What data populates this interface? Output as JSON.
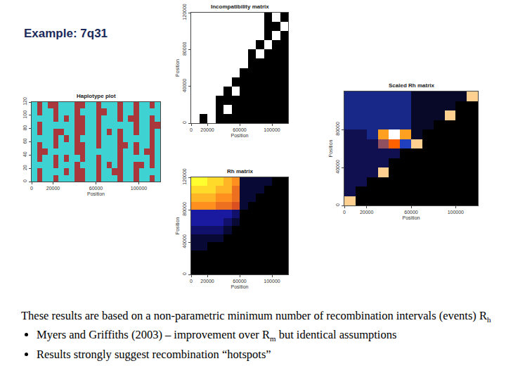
{
  "slide": {
    "title": "Example: 7q31",
    "paragraph": [
      {
        "text": "These results are based on a non-parametric minimum number of recombination intervals (events) R"
      },
      {
        "sub": "h"
      }
    ],
    "bullets": [
      [
        {
          "text": "Myers and Griffiths (2003) – improvement over R"
        },
        {
          "sub": "m"
        },
        {
          "text": " but identical assumptions"
        }
      ],
      [
        {
          "text": "Results strongly suggest recombination “hotspots”"
        }
      ]
    ]
  },
  "chart_data": [
    {
      "type": "heatmap",
      "title": "Haplotype plot",
      "x_label": "Position",
      "xlim": [
        0,
        120000
      ],
      "ylim": [
        0,
        120
      ],
      "xticks": [
        0,
        20000,
        60000,
        100000
      ],
      "yticks": [
        0,
        20,
        40,
        60,
        80,
        100,
        120
      ],
      "x": [
        2500,
        7500,
        12500,
        17500,
        22500,
        27500,
        32500,
        37500,
        42500,
        47500,
        52500,
        57500,
        62500,
        67500,
        72500,
        77500,
        82500,
        87500,
        92500,
        97500,
        102500,
        107500,
        112500,
        117500
      ],
      "y": [
        5,
        15,
        25,
        35,
        45,
        55,
        65,
        75,
        85,
        95,
        105,
        115
      ],
      "zlim": [
        0,
        1
      ],
      "colors": [
        "#3fd2d2",
        "#a8383c"
      ],
      "cells": [
        [
          0,
          1,
          0,
          0,
          1,
          0,
          0,
          0,
          1,
          1,
          0,
          0,
          1,
          0,
          0,
          0,
          1,
          0,
          0,
          1,
          0,
          0,
          1,
          0
        ],
        [
          0,
          1,
          0,
          0,
          0,
          0,
          1,
          0,
          1,
          1,
          0,
          0,
          1,
          0,
          0,
          1,
          1,
          0,
          0,
          1,
          0,
          0,
          0,
          0
        ],
        [
          0,
          0,
          0,
          0,
          1,
          0,
          0,
          0,
          1,
          0,
          0,
          0,
          1,
          0,
          1,
          0,
          1,
          0,
          0,
          1,
          1,
          0,
          1,
          0
        ],
        [
          0,
          1,
          0,
          0,
          1,
          0,
          1,
          0,
          0,
          1,
          0,
          0,
          1,
          0,
          0,
          0,
          1,
          0,
          0,
          0,
          0,
          0,
          1,
          0
        ],
        [
          0,
          1,
          1,
          0,
          0,
          0,
          0,
          0,
          1,
          1,
          0,
          0,
          0,
          0,
          0,
          0,
          1,
          0,
          0,
          1,
          0,
          1,
          1,
          0
        ],
        [
          0,
          1,
          0,
          0,
          1,
          0,
          0,
          0,
          1,
          1,
          0,
          0,
          1,
          0,
          0,
          0,
          1,
          1,
          0,
          1,
          0,
          0,
          1,
          0
        ],
        [
          0,
          0,
          0,
          0,
          1,
          0,
          1,
          0,
          1,
          0,
          0,
          0,
          1,
          0,
          0,
          0,
          1,
          0,
          0,
          0,
          0,
          0,
          1,
          0
        ],
        [
          0,
          1,
          0,
          0,
          1,
          1,
          0,
          0,
          1,
          1,
          0,
          0,
          1,
          0,
          1,
          0,
          1,
          0,
          0,
          1,
          0,
          0,
          1,
          0
        ],
        [
          0,
          1,
          0,
          0,
          0,
          0,
          0,
          0,
          1,
          1,
          0,
          0,
          1,
          0,
          0,
          0,
          0,
          0,
          0,
          1,
          0,
          0,
          1,
          1
        ],
        [
          0,
          0,
          0,
          0,
          1,
          0,
          1,
          0,
          1,
          1,
          0,
          0,
          1,
          0,
          0,
          0,
          1,
          0,
          1,
          1,
          0,
          0,
          1,
          0
        ],
        [
          0,
          1,
          0,
          0,
          1,
          0,
          0,
          0,
          1,
          0,
          0,
          0,
          1,
          1,
          0,
          0,
          1,
          0,
          0,
          1,
          0,
          0,
          0,
          0
        ],
        [
          0,
          1,
          0,
          1,
          1,
          0,
          0,
          0,
          1,
          1,
          0,
          0,
          1,
          0,
          0,
          0,
          1,
          0,
          0,
          1,
          0,
          0,
          1,
          0
        ]
      ]
    },
    {
      "type": "heatmap",
      "title": "Incompatibility matrix",
      "x_label": "Position",
      "y_label": "Position",
      "xlim": [
        0,
        120000
      ],
      "ylim": [
        0,
        120000
      ],
      "xticks": [
        0,
        20000,
        60000,
        100000
      ],
      "yticks": [
        0,
        40000,
        80000,
        120000
      ],
      "x": [
        5000,
        15000,
        25000,
        35000,
        45000,
        55000,
        65000,
        75000,
        85000,
        95000,
        105000,
        115000
      ],
      "y": [
        5000,
        15000,
        25000,
        35000,
        45000,
        55000,
        65000,
        75000,
        85000,
        95000,
        105000,
        115000
      ],
      "zlim": [
        0,
        1
      ],
      "colors": [
        "#ffffff",
        "#000000"
      ],
      "cells": [
        [
          0,
          1,
          0,
          1,
          1,
          1,
          1,
          1,
          1,
          1,
          1,
          1
        ],
        [
          0,
          0,
          0,
          1,
          0,
          1,
          1,
          1,
          1,
          1,
          1,
          1
        ],
        [
          0,
          0,
          0,
          1,
          1,
          1,
          1,
          1,
          1,
          1,
          1,
          1
        ],
        [
          0,
          0,
          0,
          0,
          1,
          0,
          1,
          1,
          1,
          1,
          1,
          1
        ],
        [
          0,
          0,
          0,
          0,
          0,
          1,
          1,
          1,
          1,
          1,
          1,
          1
        ],
        [
          0,
          0,
          0,
          0,
          0,
          0,
          1,
          1,
          1,
          1,
          1,
          1
        ],
        [
          0,
          0,
          0,
          0,
          0,
          0,
          0,
          1,
          1,
          1,
          1,
          1
        ],
        [
          0,
          0,
          0,
          0,
          0,
          0,
          0,
          1,
          0,
          1,
          1,
          1
        ],
        [
          0,
          0,
          0,
          0,
          0,
          0,
          0,
          0,
          1,
          0,
          1,
          1
        ],
        [
          0,
          0,
          0,
          0,
          0,
          0,
          0,
          0,
          0,
          1,
          0,
          1
        ],
        [
          0,
          0,
          0,
          0,
          0,
          0,
          0,
          0,
          0,
          1,
          1,
          0
        ],
        [
          0,
          0,
          0,
          0,
          0,
          0,
          0,
          0,
          0,
          1,
          0,
          1
        ]
      ]
    },
    {
      "type": "heatmap",
      "title": "Rh matrix",
      "x_label": "Position",
      "y_label": "Position",
      "xlim": [
        0,
        120000
      ],
      "ylim": [
        0,
        120000
      ],
      "xticks": [
        0,
        20000,
        60000,
        100000
      ],
      "yticks": [
        0,
        40000,
        80000,
        120000
      ],
      "x": [
        5000,
        15000,
        25000,
        35000,
        45000,
        55000,
        65000,
        75000,
        85000,
        95000,
        105000,
        115000
      ],
      "y": [
        5000,
        15000,
        25000,
        35000,
        45000,
        55000,
        65000,
        75000,
        85000,
        95000,
        105000,
        115000
      ],
      "zlim": [
        0,
        12
      ],
      "colors": [
        "#000000",
        "#1a1aa0",
        "#c83020",
        "#ff9020",
        "#ffff30"
      ],
      "cells": [
        [
          0,
          0,
          0,
          0,
          0,
          0,
          0,
          0,
          0,
          0,
          0,
          0
        ],
        [
          0,
          0,
          0,
          0,
          0,
          0,
          0,
          0,
          0,
          0,
          0,
          0
        ],
        [
          0,
          0,
          0,
          0,
          0,
          0,
          0,
          0,
          0,
          0,
          0,
          0
        ],
        [
          1,
          1,
          0,
          0,
          0,
          0,
          0,
          0,
          0,
          0,
          0,
          0
        ],
        [
          1,
          1,
          1,
          1,
          0,
          0,
          0,
          0,
          0,
          0,
          0,
          0
        ],
        [
          2,
          2,
          2,
          2,
          1,
          0,
          0,
          0,
          0,
          0,
          0,
          0
        ],
        [
          3,
          3,
          3,
          3,
          2,
          1,
          0,
          0,
          0,
          0,
          0,
          0
        ],
        [
          3,
          3,
          3,
          3,
          3,
          2,
          0,
          0,
          0,
          0,
          0,
          0
        ],
        [
          9,
          9,
          9,
          8,
          8,
          7,
          1,
          0,
          0,
          0,
          0,
          0
        ],
        [
          10,
          10,
          10,
          9,
          9,
          8,
          1,
          1,
          0,
          0,
          0,
          0
        ],
        [
          11,
          11,
          11,
          10,
          10,
          8,
          1,
          1,
          1,
          0,
          0,
          0
        ],
        [
          12,
          12,
          11,
          11,
          10,
          9,
          1,
          1,
          1,
          1,
          0,
          0
        ]
      ]
    },
    {
      "type": "heatmap",
      "title": "Scaled Rh matrix",
      "x_label": "Position",
      "y_label": "Position",
      "xlim": [
        0,
        120000
      ],
      "ylim": [
        0,
        120000
      ],
      "xticks": [
        0,
        20000,
        60000,
        100000
      ],
      "yticks": [
        0,
        40000,
        80000
      ],
      "x": [
        5000,
        15000,
        25000,
        35000,
        45000,
        55000,
        65000,
        75000,
        85000,
        95000,
        105000,
        115000
      ],
      "y": [
        5000,
        15000,
        25000,
        35000,
        45000,
        55000,
        65000,
        75000,
        85000,
        95000,
        105000,
        115000
      ],
      "zlim": [
        0,
        10
      ],
      "colors": [
        "#000000",
        "#101050",
        "#2040c0",
        "#ff6000",
        "#ffa020",
        "#ffffff"
      ],
      "cells": [
        [
          9,
          0,
          0,
          0,
          0,
          0,
          0,
          0,
          0,
          0,
          0,
          0
        ],
        [
          2,
          0,
          0,
          0,
          0,
          0,
          0,
          0,
          0,
          0,
          0,
          0
        ],
        [
          2,
          2,
          0,
          0,
          0,
          0,
          0,
          0,
          0,
          0,
          0,
          0
        ],
        [
          2,
          2,
          2,
          9,
          0,
          0,
          0,
          0,
          0,
          0,
          0,
          0
        ],
        [
          2,
          2,
          2,
          2,
          0,
          0,
          0,
          0,
          0,
          0,
          0,
          0
        ],
        [
          2,
          2,
          2,
          2,
          2,
          0,
          0,
          0,
          0,
          0,
          0,
          0
        ],
        [
          2,
          2,
          2,
          5,
          6,
          4,
          9,
          0,
          0,
          0,
          0,
          0
        ],
        [
          2,
          2,
          3,
          8,
          10,
          8,
          1,
          0,
          0,
          0,
          0,
          0
        ],
        [
          3,
          3,
          3,
          3,
          3,
          3,
          1,
          1,
          0,
          0,
          0,
          0
        ],
        [
          3,
          3,
          3,
          3,
          3,
          3,
          1,
          1,
          1,
          9,
          0,
          0
        ],
        [
          3,
          3,
          3,
          3,
          3,
          3,
          1,
          1,
          1,
          1,
          0,
          0
        ],
        [
          3,
          3,
          3,
          3,
          3,
          3,
          1,
          1,
          1,
          1,
          1,
          9
        ]
      ]
    }
  ]
}
